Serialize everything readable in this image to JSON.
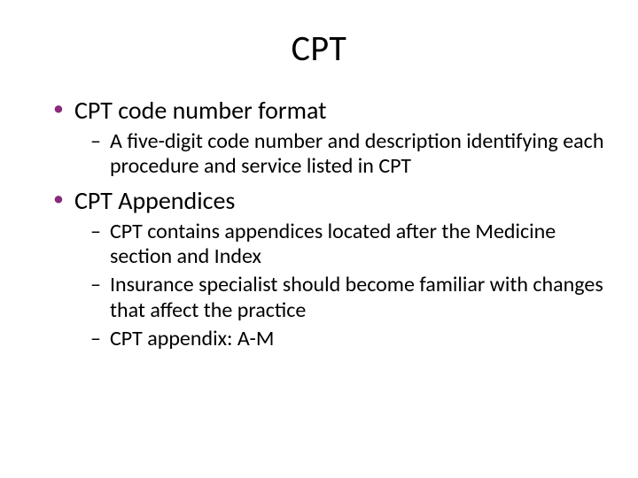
{
  "slide": {
    "title": "CPT",
    "title_fontsize": 40,
    "title_color": "#000000",
    "background_color": "#ffffff",
    "bullet_level1_color": "#8a2a7a",
    "bullet_level1_fontsize": 28,
    "bullet_level2_fontsize": 24,
    "text_color": "#000000",
    "items": [
      {
        "text": "CPT code number format",
        "sub": [
          "A five-digit code number and description identifying each procedure and service listed in CPT"
        ]
      },
      {
        "text": "CPT Appendices",
        "sub": [
          "CPT contains appendices located after the Medicine section and Index",
          "Insurance specialist should become familiar with changes that affect the practice",
          "CPT appendix: A-M"
        ]
      }
    ]
  }
}
